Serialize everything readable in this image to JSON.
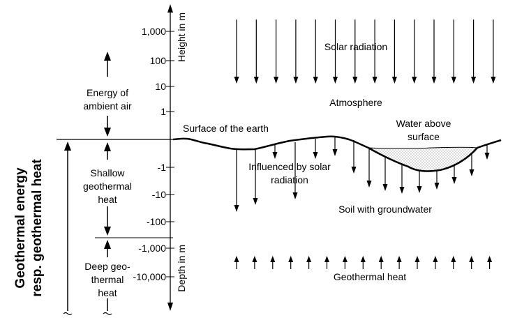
{
  "axis": {
    "height_label": "Height in m",
    "depth_label": "Depth in m",
    "ticks": [
      "1,000",
      "100",
      "10",
      "1",
      "-1",
      "-10",
      "-100",
      "-1,000",
      "-10,000"
    ]
  },
  "labels": {
    "solar_radiation": "Solar radiation",
    "atmosphere": "Atmosphere",
    "surface_of_earth": "Surface of the earth",
    "water_line1": "Water above",
    "water_line2": "surface",
    "influenced_line1": "Influenced by solar",
    "influenced_line2": "radiation",
    "soil": "Soil with groundwater",
    "geothermal_heat": "Geothermal heat"
  },
  "left_column": {
    "energy_air_line1": "Energy of",
    "energy_air_line2": "ambient air",
    "shallow_line1": "Shallow",
    "shallow_line2": "geothermal",
    "shallow_line3": "heat",
    "deep_line1": "Deep geo-",
    "deep_line2": "thermal",
    "deep_line3": "heat",
    "side_title_line1": "Geothermal energy",
    "side_title_line2": "resp. geothermal heat"
  }
}
